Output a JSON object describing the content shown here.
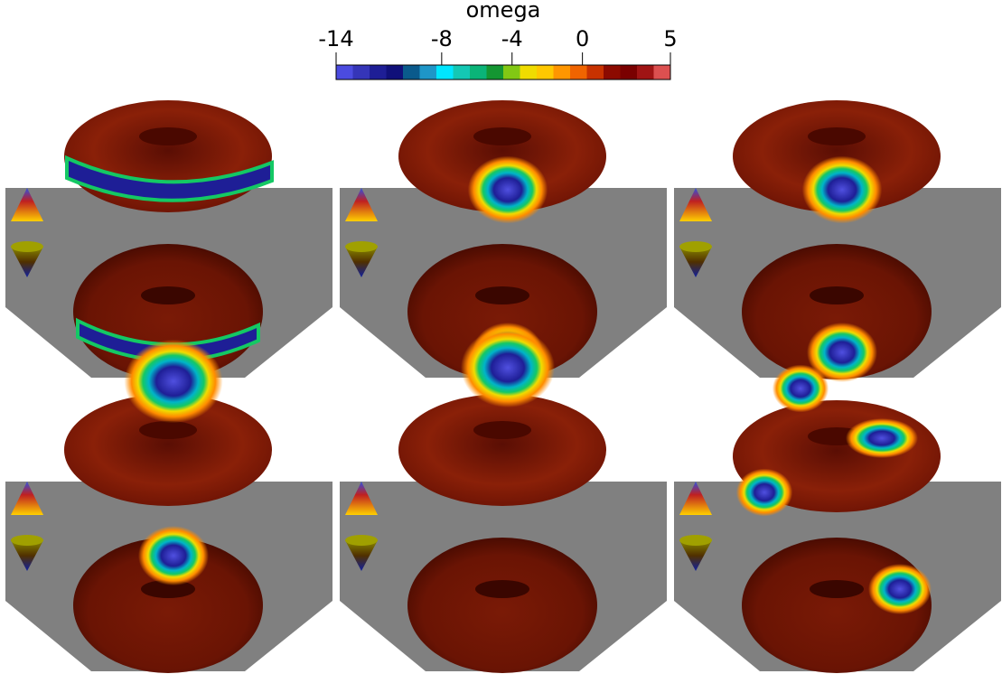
{
  "colorbar": {
    "title": "omega",
    "lim": [
      -14,
      5
    ],
    "ticks": [
      -14,
      -8,
      -4,
      0,
      5
    ],
    "colors": [
      "#4b4be0",
      "#3535b8",
      "#1e1e96",
      "#10107a",
      "#0a5a8c",
      "#1e96c8",
      "#00e6ff",
      "#14c8b4",
      "#0ab478",
      "#149632",
      "#82c814",
      "#f0dc00",
      "#ffc800",
      "#ff9600",
      "#f06400",
      "#c83200",
      "#8c0a00",
      "#7a0000",
      "#a01414",
      "#dc5050"
    ]
  }
}
